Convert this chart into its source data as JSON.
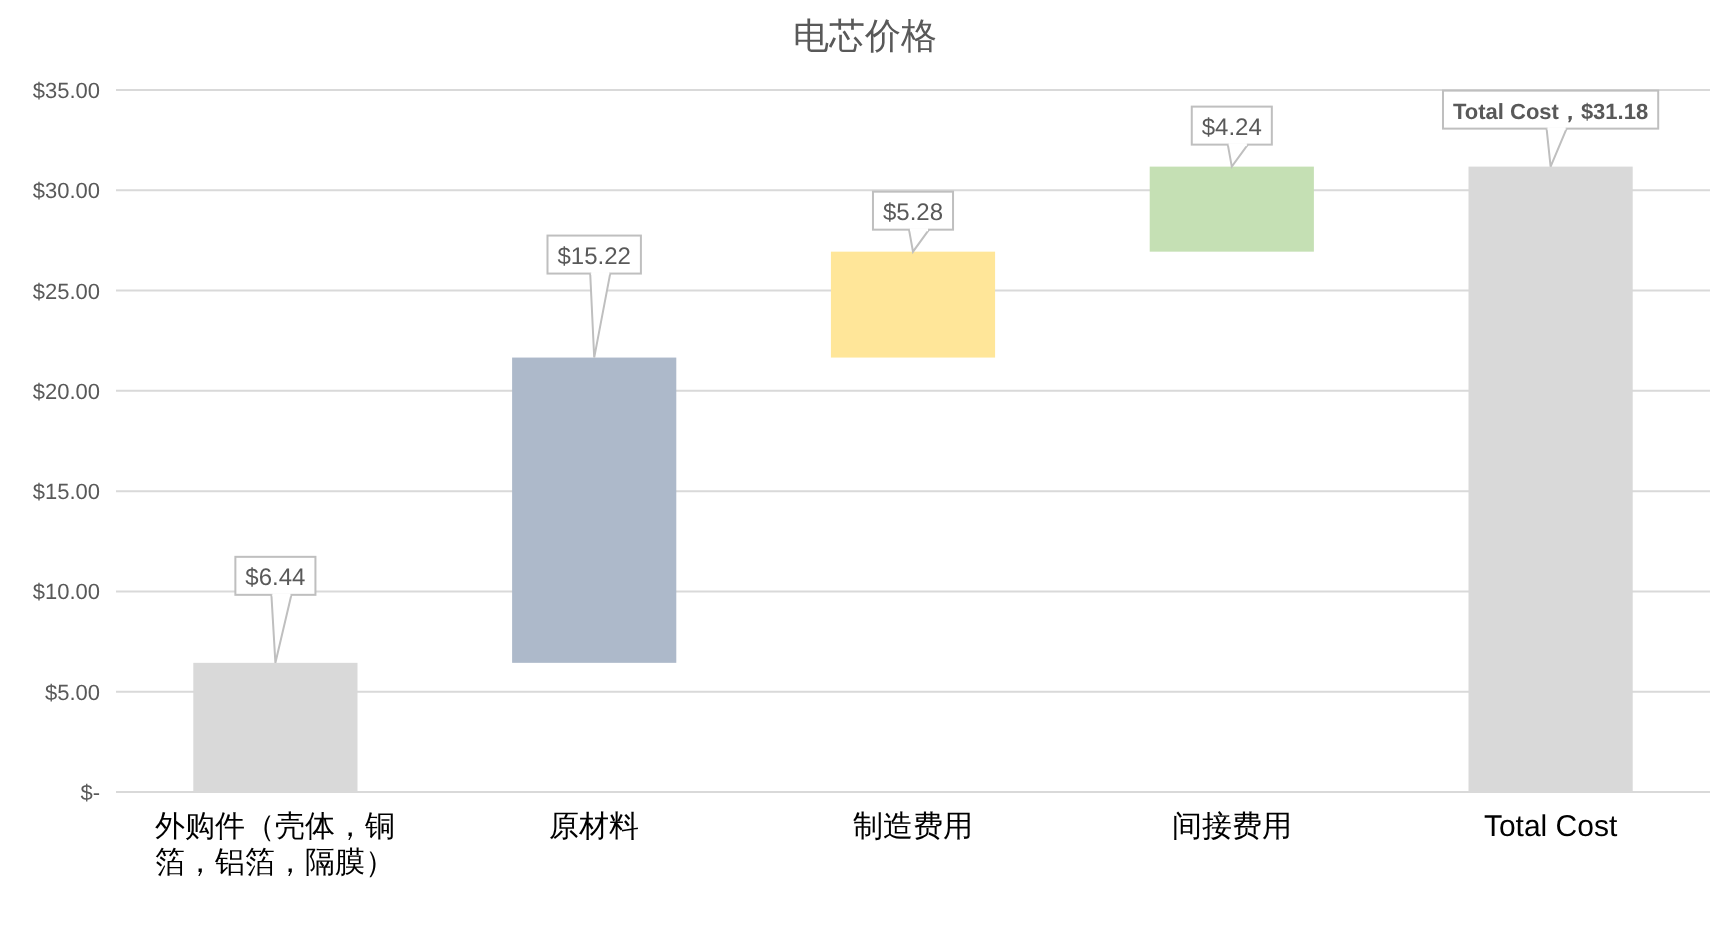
{
  "chart_data": {
    "type": "bar",
    "title": "电芯价格",
    "categories": [
      "外购件（壳体，铜箔，铝箔，隔膜）",
      "原材料",
      "制造费用",
      "间接费用",
      "Total Cost"
    ],
    "values": [
      6.44,
      15.22,
      5.28,
      4.24,
      31.18
    ],
    "base": [
      0,
      6.44,
      21.66,
      26.94,
      0
    ],
    "colors": [
      "#d9d9d9",
      "#adb9ca",
      "#ffe699",
      "#c5e0b4",
      "#d9d9d9"
    ],
    "value_labels": [
      "$6.44",
      "$15.22",
      "$5.28",
      "$4.24",
      "Total Cost，$31.18"
    ],
    "ylim": [
      0,
      35
    ],
    "yticks": [
      {
        "value": 0,
        "label": "$-"
      },
      {
        "value": 5,
        "label": "$5.00"
      },
      {
        "value": 10,
        "label": "$10.00"
      },
      {
        "value": 15,
        "label": "$15.00"
      },
      {
        "value": 20,
        "label": "$20.00"
      },
      {
        "value": 25,
        "label": "$25.00"
      },
      {
        "value": 30,
        "label": "$30.00"
      },
      {
        "value": 35,
        "label": "$35.00"
      }
    ],
    "grid": "y"
  }
}
